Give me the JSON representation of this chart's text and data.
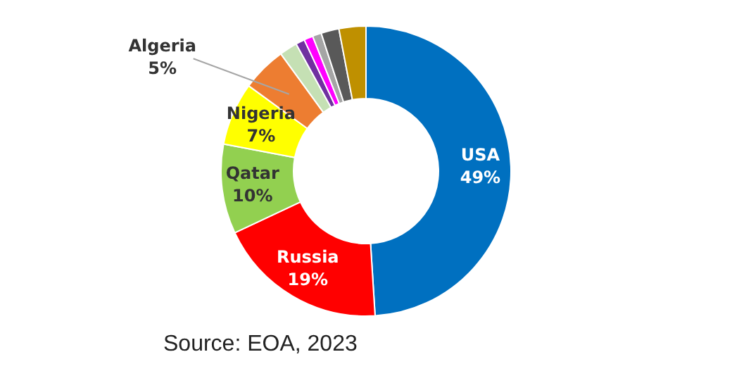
{
  "chart_data": {
    "type": "donut",
    "categories": [
      "USA",
      "Russia",
      "Qatar",
      "Nigeria",
      "Algeria",
      null,
      null,
      null,
      null,
      null,
      null
    ],
    "values": [
      49,
      19,
      10,
      7,
      5,
      2,
      1,
      1,
      1,
      2,
      3
    ],
    "colors": [
      "#0070c0",
      "#ff0000",
      "#92d050",
      "#ffff00",
      "#ed7d31",
      "#c5e0b4",
      "#7030a0",
      "#ff00ff",
      "#a5a5a5",
      "#595959",
      "#bf9000"
    ],
    "value_labels": [
      "49%",
      "19%",
      "10%",
      "7%",
      "5%",
      null,
      null,
      null,
      null,
      null,
      null
    ],
    "legend": false,
    "annotations": [
      "Source: EOA, 2023"
    ]
  }
}
